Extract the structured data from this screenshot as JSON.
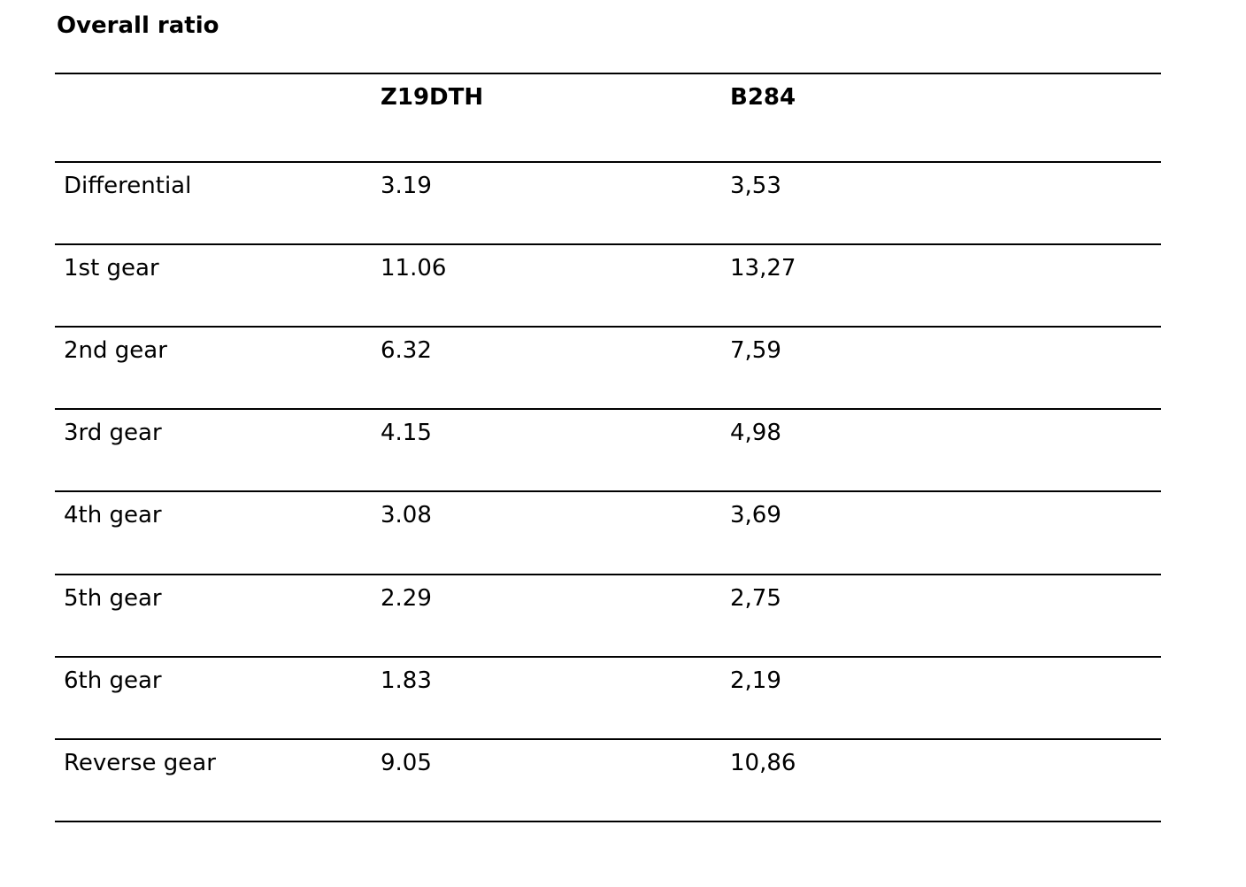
{
  "title": "Overall ratio",
  "table": {
    "header": [
      "Z19DTH",
      "B284"
    ],
    "rows": [
      [
        "Differential",
        "3.19",
        "3,53"
      ],
      [
        "1st gear",
        "11.06",
        "13,27"
      ],
      [
        "2nd gear",
        "6.32",
        "7,59"
      ],
      [
        "3rd gear",
        "4.15",
        "4,98"
      ],
      [
        "4th gear",
        "3.08",
        "3,69"
      ],
      [
        "5th gear",
        "2.29",
        "2,75"
      ],
      [
        "6th gear",
        "1.83",
        "2,19"
      ],
      [
        "Reverse gear",
        "9.05",
        "10,86"
      ]
    ]
  }
}
